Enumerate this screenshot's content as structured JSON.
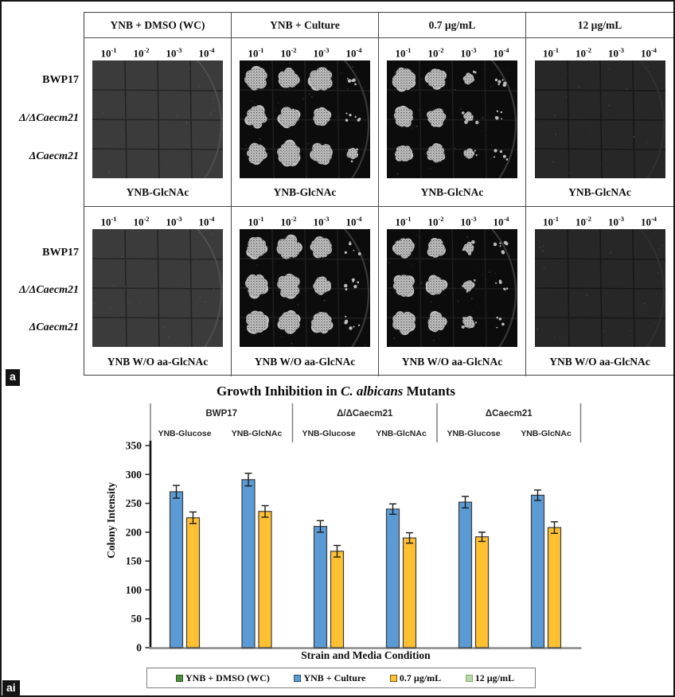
{
  "figure": {
    "panel_a_tag": "a",
    "panel_ai_tag": "ai"
  },
  "panel_a": {
    "condition_headers": [
      "YNB + DMSO (WC)",
      "YNB + Culture",
      "0.7 µg/mL",
      "12 µg/mL"
    ],
    "dilution_base": "10",
    "dilution_exponents": [
      "-1",
      "-2",
      "-3",
      "-4"
    ],
    "strain_labels": [
      {
        "text": "BWP17",
        "italic": false
      },
      {
        "text": "Δ/ΔCaecm21",
        "italic": true
      },
      {
        "text": "ΔCaecm21",
        "italic": true
      }
    ],
    "media_rows": [
      {
        "media_label": "YNB-GlcNAc",
        "plates": [
          {
            "condition": "YNB + DMSO (WC)",
            "style": "gray",
            "growth": [
              [
                0,
                0,
                0,
                0
              ],
              [
                0,
                0,
                0,
                0
              ],
              [
                0,
                0,
                0,
                0
              ]
            ]
          },
          {
            "condition": "YNB + Culture",
            "style": "black",
            "growth": [
              [
                4,
                4,
                4,
                1
              ],
              [
                4,
                4,
                3,
                1
              ],
              [
                4,
                4,
                4,
                2
              ]
            ]
          },
          {
            "condition": "0.7 µg/mL",
            "style": "black",
            "growth": [
              [
                4,
                3,
                2,
                1
              ],
              [
                4,
                3,
                2,
                1
              ],
              [
                3,
                3,
                2,
                1
              ]
            ]
          },
          {
            "condition": "12 µg/mL",
            "style": "dark",
            "growth": [
              [
                0,
                0,
                0,
                0
              ],
              [
                0,
                0,
                0,
                0
              ],
              [
                0,
                0,
                0,
                0
              ]
            ]
          }
        ]
      },
      {
        "media_label": "YNB W/O aa-GlcNAc",
        "plates": [
          {
            "condition": "YNB + DMSO (WC)",
            "style": "gray",
            "growth": [
              [
                0,
                0,
                0,
                0
              ],
              [
                0,
                0,
                0,
                0
              ],
              [
                0,
                0,
                0,
                0
              ]
            ]
          },
          {
            "condition": "YNB + Culture",
            "style": "black",
            "growth": [
              [
                4,
                4,
                4,
                1
              ],
              [
                4,
                4,
                3,
                1
              ],
              [
                4,
                4,
                4,
                1
              ]
            ]
          },
          {
            "condition": "0.7 µg/mL",
            "style": "black",
            "growth": [
              [
                4,
                3,
                2,
                1
              ],
              [
                4,
                4,
                2,
                1
              ],
              [
                4,
                3,
                2,
                1
              ]
            ]
          },
          {
            "condition": "12 µg/mL",
            "style": "dark",
            "growth": [
              [
                0,
                0,
                0,
                0
              ],
              [
                0,
                0,
                0,
                0
              ],
              [
                0,
                0,
                0,
                0
              ]
            ]
          }
        ]
      }
    ]
  },
  "chart_data": {
    "type": "bar",
    "title_parts": [
      "Growth Inhibition in ",
      "C. albicans",
      " Mutants"
    ],
    "xlabel": "Strain and Media Condition",
    "ylabel": "Colony Intensity",
    "ylim": [
      0,
      350
    ],
    "ytick_step": 50,
    "grid": false,
    "legend_position": "bottom",
    "group_headers": [
      "BWP17",
      "Δ/ΔCaecm21",
      "ΔCaecm21"
    ],
    "categories": [
      "YNB-Glucose",
      "YNB-GlcNAc",
      "YNB-Glucose",
      "YNB-GlcNAc",
      "YNB-Glucose",
      "YNB-GlcNAc"
    ],
    "series": [
      {
        "name": "YNB + DMSO (WC)",
        "color": "#4E8C3F",
        "border": "#2F5B27",
        "values": [
          0,
          0,
          0,
          0,
          0,
          0
        ],
        "errors": [
          0,
          0,
          0,
          0,
          0,
          0
        ]
      },
      {
        "name": "YNB + Culture",
        "color": "#5B9BD5",
        "border": "#2F4D68",
        "values": [
          270,
          291,
          210,
          240,
          252,
          264
        ],
        "errors": [
          11,
          11,
          10,
          9,
          10,
          9
        ]
      },
      {
        "name": "0.7 µg/mL",
        "color": "#FFC032",
        "border": "#6E5A1B",
        "values": [
          225,
          236,
          167,
          190,
          192,
          208
        ],
        "errors": [
          10,
          10,
          10,
          9,
          8,
          10
        ]
      },
      {
        "name": "12 µg/mL",
        "color": "#B7D7A8",
        "border": "#7FA86C",
        "values": [
          0,
          0,
          0,
          0,
          0,
          0
        ],
        "errors": [
          0,
          0,
          0,
          0,
          0,
          0
        ]
      }
    ]
  }
}
